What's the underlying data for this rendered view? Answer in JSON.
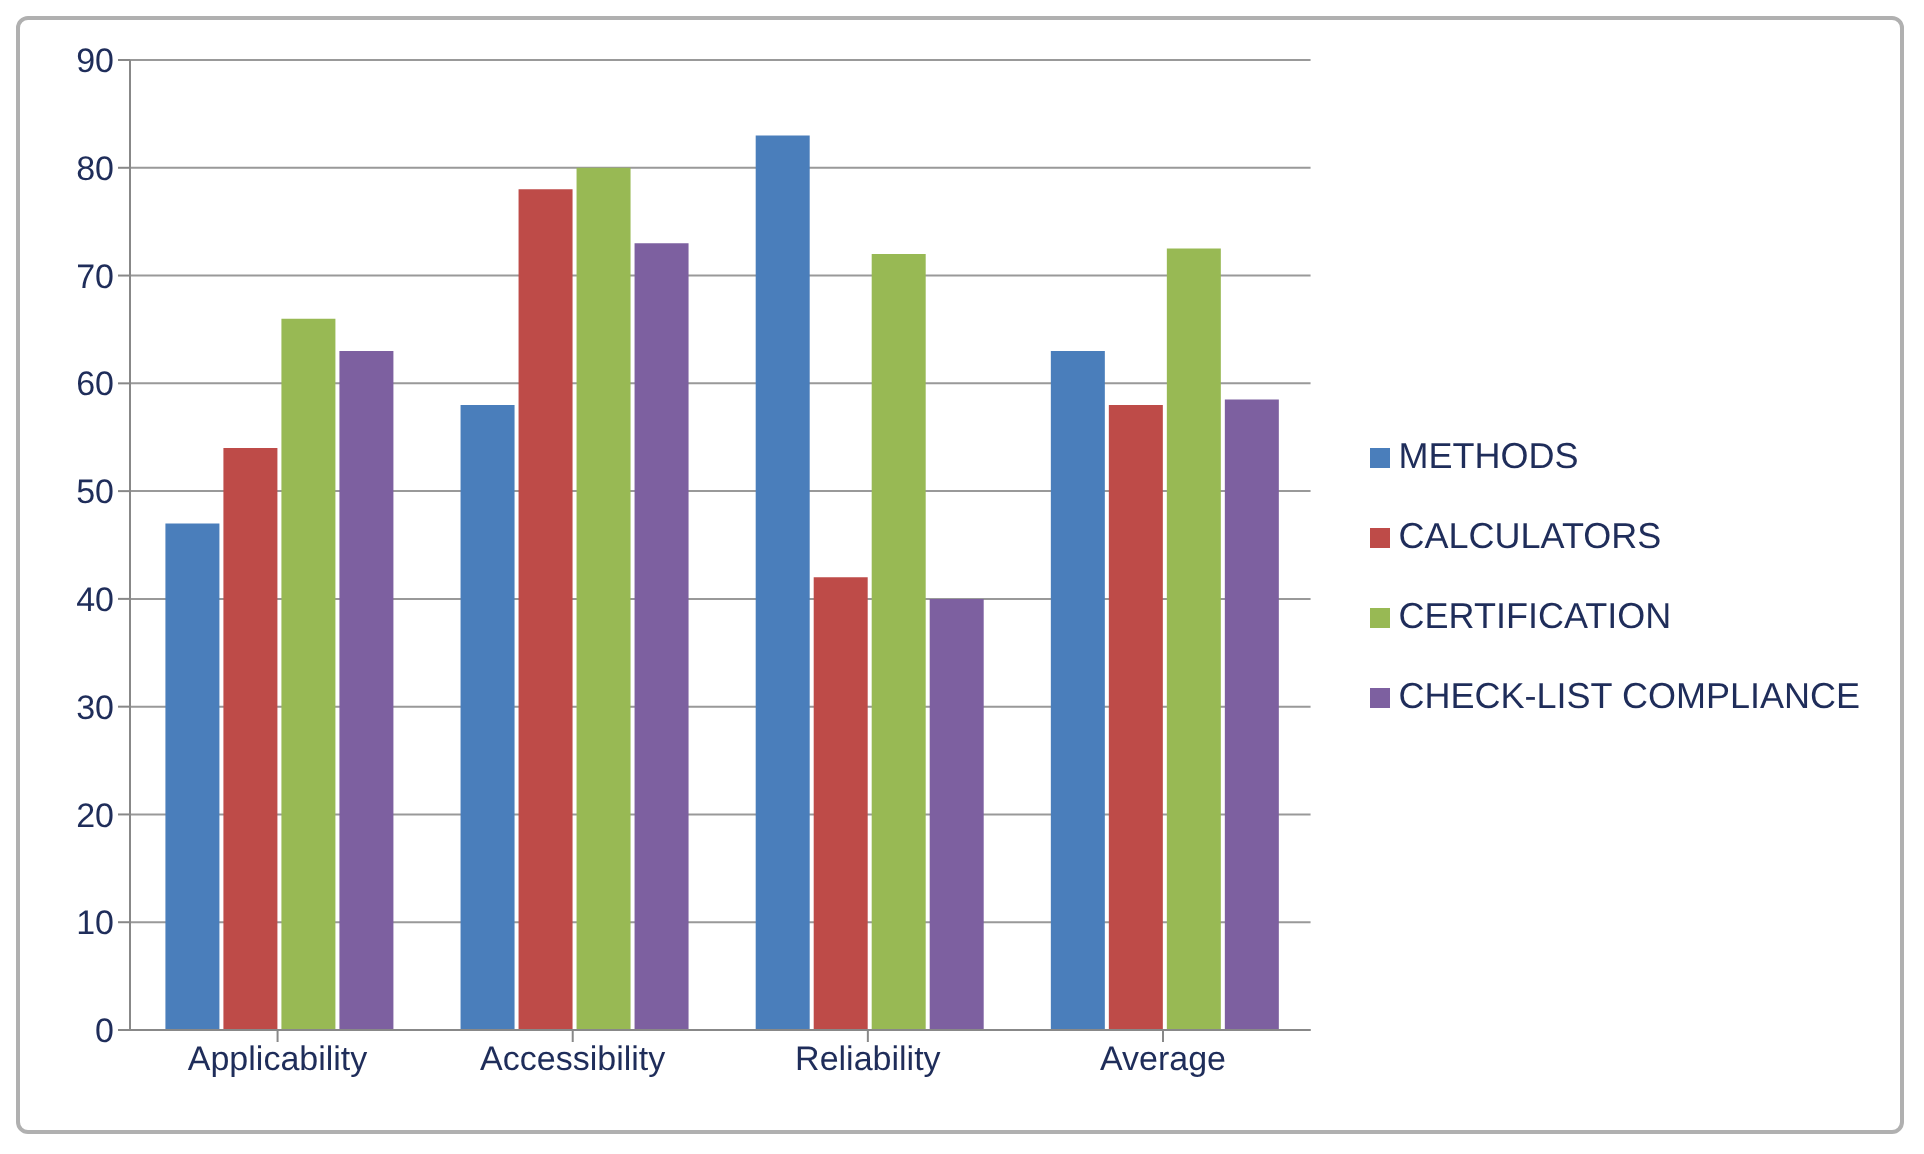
{
  "chart_data": {
    "type": "bar",
    "categories": [
      "Applicability",
      "Accessibility",
      "Reliability",
      "Average"
    ],
    "series": [
      {
        "name": "METHODS",
        "color": "#4a7ebb",
        "values": [
          47,
          58,
          83,
          63
        ]
      },
      {
        "name": "CALCULATORS",
        "color": "#be4b48",
        "values": [
          54,
          78,
          42,
          58
        ]
      },
      {
        "name": "CERTIFICATION",
        "color": "#98b954",
        "values": [
          66,
          80,
          72,
          72.5
        ]
      },
      {
        "name": "CHECK-LIST COMPLIANCE",
        "color": "#7d60a0",
        "values": [
          63,
          73,
          40,
          58.5
        ]
      }
    ],
    "ylim": [
      0,
      90
    ],
    "yticks": [
      0,
      10,
      20,
      30,
      40,
      50,
      60,
      70,
      80,
      90
    ],
    "grid": "y",
    "legend": "right"
  }
}
